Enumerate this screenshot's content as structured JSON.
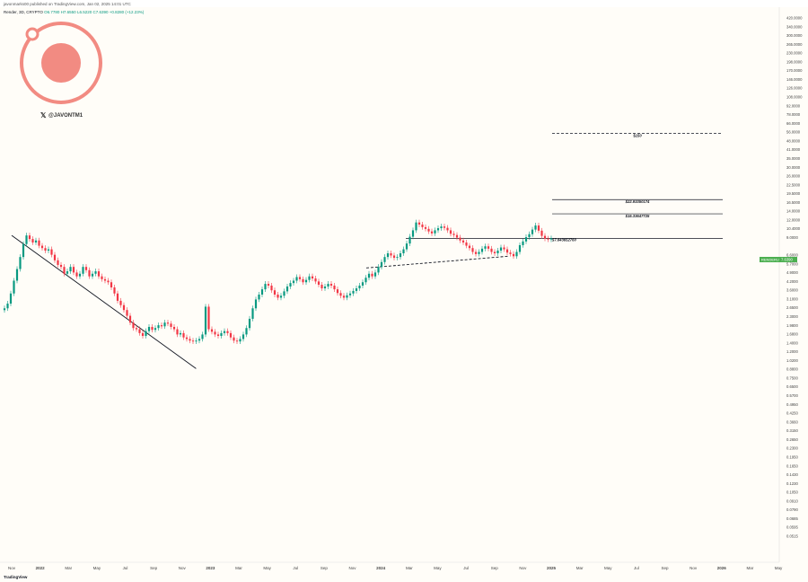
{
  "header": {
    "published": "javonmarks00 published on TradingView.com, Jan 02, 2025 14:01 UTC",
    "symbol": "Render, 3D, CRYPTO",
    "ohlc": [
      "O6.7780",
      "H7.6550",
      "L6.5220",
      "C7.6390",
      "+0.8280 (+12.23%)"
    ]
  },
  "brand": {
    "handle": "@JAVONTM1",
    "x_icon": "x-logo-icon",
    "logo_icon": "ring-logo-icon",
    "logo_color": "#f28b82"
  },
  "footer": {
    "brand": "TradingView"
  },
  "price_tag": {
    "symbol": "RENDERUSD",
    "price": "7.6390",
    "color": "#4caf50"
  },
  "chart_data": {
    "type": "line",
    "title": "",
    "scale": "log",
    "y_ticks": [
      "420.0000",
      "340.0000",
      "300.0000",
      "265.0000",
      "230.0000",
      "198.0000",
      "170.0000",
      "146.0000",
      "126.0000",
      "108.0000",
      "92.0000",
      "78.0000",
      "66.0000",
      "56.0000",
      "48.0000",
      "41.0000",
      "35.0000",
      "30.0000",
      "26.0000",
      "22.5000",
      "19.5000",
      "16.5000",
      "14.0000",
      "12.0000",
      "10.4000",
      "9.0000",
      "7.6390",
      "6.6000",
      "5.7000",
      "4.9000",
      "4.2000",
      "3.6000",
      "3.1000",
      "2.6500",
      "2.3000",
      "1.9800",
      "1.6800",
      "1.4000",
      "1.2000",
      "1.0200",
      "0.8800",
      "0.7500",
      "0.6500",
      "0.5700",
      "0.4950",
      "0.4250",
      "0.3660",
      "0.3150",
      "0.2650",
      "0.2300",
      "0.1950",
      "0.1650",
      "0.1430",
      "0.1230",
      "0.1050",
      "0.0910",
      "0.0790",
      "0.0685",
      "0.0595",
      "0.0515"
    ],
    "x_ticks": [
      "Nov",
      "2022",
      "Mar",
      "May",
      "Jul",
      "Sep",
      "Nov",
      "2023",
      "Mar",
      "May",
      "Jul",
      "Sep",
      "Nov",
      "2024",
      "Mar",
      "May",
      "Jul",
      "Sep",
      "Nov",
      "2025",
      "Mar",
      "May",
      "Jul",
      "Sep",
      "Nov",
      "2026",
      "Mar",
      "May"
    ],
    "series": [
      {
        "values": [
          1.05,
          1.2,
          1.6,
          2.3,
          3.2,
          4.5,
          6.5,
          8.3,
          7.5,
          6.8,
          7.2,
          6.2,
          5.8,
          5.4,
          5.6,
          4.8,
          4.1,
          3.6,
          3.4,
          2.8,
          3.0,
          3.4,
          2.9,
          2.6,
          2.8,
          3.4,
          3.1,
          2.6,
          2.8,
          3.0,
          2.6,
          2.4,
          2.3,
          2.2,
          1.9,
          1.6,
          1.3,
          1.15,
          1.0,
          0.85,
          0.7,
          0.6,
          0.58,
          0.52,
          0.48,
          0.55,
          0.62,
          0.57,
          0.6,
          0.65,
          0.63,
          0.7,
          0.68,
          0.62,
          0.58,
          0.5,
          0.52,
          0.46,
          0.44,
          0.42,
          0.41,
          0.42,
          0.44,
          0.5,
          1.1,
          0.58,
          0.54,
          0.5,
          0.48,
          0.52,
          0.55,
          0.52,
          0.46,
          0.42,
          0.41,
          0.44,
          0.5,
          0.6,
          0.78,
          1.05,
          1.35,
          1.55,
          1.8,
          2.1,
          2.0,
          1.75,
          1.55,
          1.42,
          1.5,
          1.7,
          1.95,
          2.15,
          2.3,
          2.55,
          2.4,
          2.2,
          2.35,
          2.6,
          2.45,
          2.25,
          2.05,
          1.85,
          1.95,
          2.1,
          2.0,
          1.8,
          1.62,
          1.5,
          1.42,
          1.52,
          1.6,
          1.72,
          1.85,
          2.0,
          2.2,
          2.5,
          2.8,
          2.6,
          2.9,
          3.4,
          3.9,
          4.5,
          5.0,
          4.7,
          4.4,
          4.5,
          5.0,
          5.6,
          6.6,
          8.0,
          9.6,
          12.0,
          11.3,
          10.5,
          10.0,
          9.3,
          8.8,
          9.6,
          10.2,
          10.7,
          10.3,
          9.6,
          8.7,
          8.4,
          7.8,
          7.2,
          6.8,
          6.2,
          5.8,
          5.2,
          4.9,
          5.2,
          5.7,
          6.1,
          5.7,
          5.2,
          5.0,
          5.4,
          5.9,
          5.6,
          5.1,
          4.9,
          4.6,
          5.2,
          6.3,
          7.0,
          7.9,
          8.6,
          9.8,
          11.0,
          9.5,
          8.2,
          7.6,
          7.4,
          7.64
        ],
        "color": "#089981"
      }
    ],
    "annotations": [
      {
        "label": "$150",
        "level": 150,
        "style": "dashed"
      },
      {
        "label": "$22.93350174",
        "level": 22.9335,
        "style": "solid"
      },
      {
        "label": "$15.33647725",
        "level": 15.3365,
        "style": "solid"
      },
      {
        "label": "$7.643652760",
        "level": 7.6437,
        "style": "solid"
      }
    ],
    "trendlines": [
      {
        "from": {
          "date": "2021-11",
          "price": 8.3
        },
        "to": {
          "date": "2022-12",
          "price": 0.19
        },
        "style": "solid"
      },
      {
        "from": {
          "date": "2023-12",
          "price": 3.3
        },
        "to": {
          "date": "2024-10",
          "price": 4.6
        },
        "style": "dashed"
      }
    ]
  }
}
